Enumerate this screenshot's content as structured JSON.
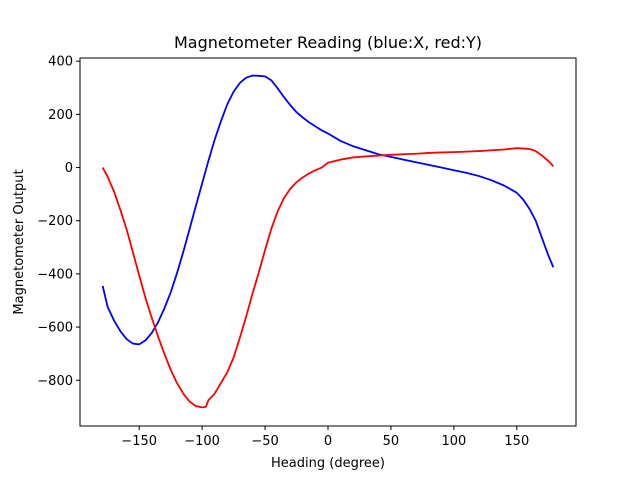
{
  "chart_data": {
    "type": "line",
    "title": "Magnetometer Reading (blue:X, red:Y)",
    "xlabel": "Heading (degree)",
    "ylabel": "Magnetometer Output",
    "xlim": [
      -197,
      197
    ],
    "ylim": [
      -972,
      412
    ],
    "xticks": [
      -150,
      -100,
      -50,
      0,
      50,
      100,
      150
    ],
    "yticks": [
      -800,
      -600,
      -400,
      -200,
      0,
      200,
      400
    ],
    "xtick_labels": [
      "−150",
      "−100",
      "−50",
      "0",
      "50",
      "100",
      "150"
    ],
    "ytick_labels": [
      "−800",
      "−600",
      "−400",
      "−200",
      "0",
      "200",
      "400"
    ],
    "grid": false,
    "series": [
      {
        "color": "#0000ff",
        "x": [
          -179,
          -175,
          -170,
          -165,
          -160,
          -155,
          -150,
          -145,
          -140,
          -135,
          -130,
          -125,
          -120,
          -115,
          -110,
          -105,
          -100,
          -95,
          -90,
          -85,
          -80,
          -75,
          -70,
          -65,
          -60,
          -55,
          -50,
          -45,
          -40,
          -35,
          -30,
          -25,
          -20,
          -15,
          -10,
          -5,
          0,
          10,
          20,
          30,
          40,
          50,
          60,
          70,
          80,
          90,
          100,
          110,
          120,
          130,
          140,
          150,
          155,
          160,
          165,
          170,
          175,
          179
        ],
        "y": [
          -445,
          -525,
          -575,
          -615,
          -645,
          -662,
          -665,
          -650,
          -622,
          -582,
          -530,
          -470,
          -398,
          -318,
          -232,
          -145,
          -60,
          25,
          105,
          175,
          238,
          285,
          318,
          338,
          346,
          345,
          343,
          328,
          298,
          265,
          235,
          208,
          188,
          170,
          155,
          140,
          128,
          100,
          80,
          65,
          50,
          40,
          30,
          20,
          10,
          0,
          -10,
          -20,
          -32,
          -48,
          -68,
          -95,
          -120,
          -155,
          -200,
          -265,
          -330,
          -375
        ]
      },
      {
        "color": "#ff0000",
        "x": [
          -179,
          -175,
          -170,
          -165,
          -160,
          -155,
          -150,
          -145,
          -140,
          -135,
          -130,
          -125,
          -120,
          -115,
          -110,
          -105,
          -100,
          -97,
          -95,
          -90,
          -85,
          -80,
          -75,
          -70,
          -65,
          -60,
          -55,
          -50,
          -45,
          -40,
          -35,
          -30,
          -25,
          -20,
          -15,
          -10,
          -5,
          0,
          10,
          20,
          30,
          40,
          50,
          60,
          70,
          80,
          90,
          100,
          110,
          120,
          130,
          140,
          150,
          160,
          165,
          170,
          175,
          179
        ],
        "y": [
          0,
          -35,
          -90,
          -158,
          -232,
          -318,
          -405,
          -490,
          -565,
          -635,
          -700,
          -760,
          -810,
          -850,
          -880,
          -897,
          -902,
          -900,
          -875,
          -850,
          -810,
          -770,
          -715,
          -640,
          -560,
          -475,
          -395,
          -310,
          -230,
          -165,
          -115,
          -80,
          -55,
          -37,
          -22,
          -10,
          0,
          18,
          30,
          38,
          42,
          45,
          48,
          50,
          52,
          55,
          57,
          58,
          60,
          62,
          65,
          68,
          73,
          70,
          62,
          45,
          25,
          5
        ]
      }
    ]
  }
}
